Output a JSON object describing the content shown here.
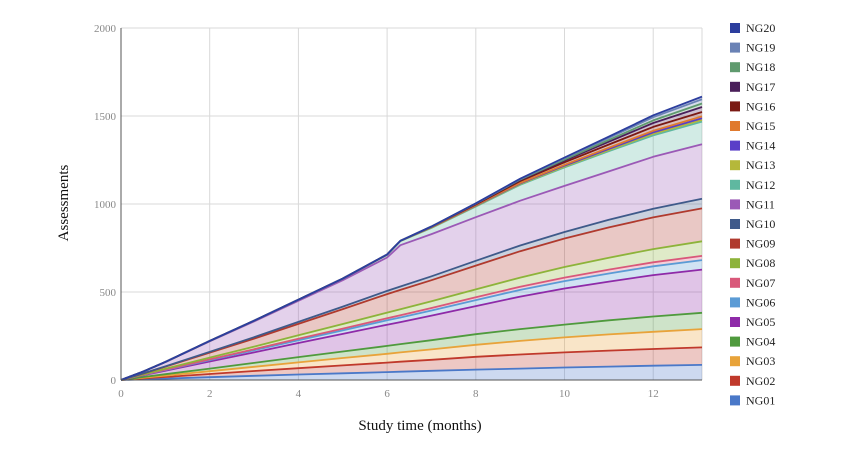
{
  "chart_data": {
    "type": "area",
    "stacked": true,
    "title": "",
    "xlabel": "Study time (months)",
    "ylabel": "Assessments",
    "xlim": [
      0,
      13.1
    ],
    "ylim": [
      0,
      2000
    ],
    "xticks": [
      0,
      2,
      4,
      6,
      8,
      10,
      12
    ],
    "yticks": [
      0,
      500,
      1000,
      1500,
      2000
    ],
    "grid": true,
    "legend_position": "right",
    "x": [
      0,
      0.5,
      1,
      2,
      3,
      4,
      5,
      6,
      6.3,
      7,
      8,
      9,
      10,
      11,
      12,
      13.1
    ],
    "series": [
      {
        "name": "NG01",
        "color": "#4a78c8",
        "values": [
          0,
          4,
          8,
          16,
          24,
          31,
          38,
          45,
          47,
          52,
          59,
          65,
          71,
          76,
          81,
          86
        ]
      },
      {
        "name": "NG02",
        "color": "#c0392b",
        "values": [
          0,
          5,
          9,
          18,
          27,
          36,
          45,
          54,
          57,
          63,
          73,
          80,
          86,
          91,
          95,
          99
        ]
      },
      {
        "name": "NG03",
        "color": "#e8a33a",
        "values": [
          0,
          4,
          8,
          16,
          24,
          33,
          42,
          50,
          53,
          59,
          68,
          77,
          85,
          92,
          98,
          104
        ]
      },
      {
        "name": "NG04",
        "color": "#4f9a3d",
        "values": [
          0,
          4,
          8,
          15,
          22,
          30,
          37,
          45,
          47,
          52,
          60,
          67,
          73,
          80,
          87,
          93
        ]
      },
      {
        "name": "NG05",
        "color": "#8e2aa8",
        "values": [
          0,
          10,
          20,
          40,
          60,
          80,
          100,
          120,
          125,
          140,
          160,
          185,
          205,
          220,
          235,
          245
        ]
      },
      {
        "name": "NG06",
        "color": "#5b9bd5",
        "values": [
          0,
          2,
          4,
          8,
          12,
          16,
          20,
          25,
          26,
          29,
          34,
          38,
          42,
          46,
          50,
          54
        ]
      },
      {
        "name": "NG07",
        "color": "#d9587a",
        "values": [
          0,
          1,
          2,
          4,
          6,
          8,
          10,
          12,
          13,
          14,
          16,
          18,
          20,
          22,
          23,
          24
        ]
      },
      {
        "name": "NG08",
        "color": "#8db33a",
        "values": [
          0,
          2,
          5,
          10,
          15,
          20,
          26,
          32,
          34,
          38,
          45,
          52,
          60,
          68,
          75,
          83
        ]
      },
      {
        "name": "NG09",
        "color": "#b03a2e",
        "values": [
          0,
          5,
          12,
          28,
          45,
          65,
          85,
          105,
          110,
          120,
          135,
          150,
          162,
          172,
          180,
          187
        ]
      },
      {
        "name": "NG10",
        "color": "#3f5a8a",
        "values": [
          0,
          1,
          2,
          5,
          8,
          11,
          14,
          18,
          19,
          22,
          27,
          32,
          37,
          43,
          49,
          55
        ]
      },
      {
        "name": "NG11",
        "color": "#9b59b6",
        "values": [
          0,
          10,
          24,
          60,
          90,
          120,
          150,
          190,
          235,
          240,
          248,
          255,
          262,
          275,
          295,
          310
        ]
      },
      {
        "name": "NG12",
        "color": "#5fb8a0",
        "values": [
          0,
          0,
          1,
          2,
          4,
          6,
          9,
          15,
          23,
          35,
          60,
          90,
          105,
          115,
          122,
          128
        ]
      },
      {
        "name": "NG13",
        "color": "#b5b83a",
        "values": [
          0,
          0,
          0,
          0,
          0,
          0,
          0,
          1,
          1,
          2,
          3,
          4,
          5,
          7,
          9,
          10
        ]
      },
      {
        "name": "NG14",
        "color": "#5a3fc8",
        "values": [
          0,
          0,
          0,
          0,
          0,
          0,
          0,
          1,
          1,
          2,
          3,
          4,
          5,
          6,
          8,
          9
        ]
      },
      {
        "name": "NG15",
        "color": "#e07a2e",
        "values": [
          0,
          0,
          0,
          0,
          0,
          0,
          0,
          0,
          0,
          1,
          2,
          3,
          5,
          7,
          9,
          11
        ]
      },
      {
        "name": "NG16",
        "color": "#7a1a14",
        "values": [
          0,
          0,
          0,
          0,
          0,
          0,
          0,
          0,
          0,
          2,
          5,
          10,
          14,
          18,
          22,
          25
        ]
      },
      {
        "name": "NG17",
        "color": "#4a1f5a",
        "values": [
          0,
          0,
          0,
          0,
          0,
          0,
          0,
          0,
          0,
          1,
          3,
          6,
          10,
          16,
          22,
          28
        ]
      },
      {
        "name": "NG18",
        "color": "#5f9a6e",
        "values": [
          0,
          0,
          0,
          0,
          0,
          0,
          0,
          0,
          0,
          0,
          1,
          3,
          6,
          10,
          15,
          20
        ]
      },
      {
        "name": "NG19",
        "color": "#6a82b5",
        "values": [
          0,
          0,
          0,
          0,
          0,
          0,
          0,
          0,
          0,
          0,
          1,
          3,
          7,
          12,
          18,
          24
        ]
      },
      {
        "name": "NG20",
        "color": "#2c3e9e",
        "values": [
          0,
          0,
          0,
          0,
          0,
          0,
          0,
          0,
          0,
          0,
          1,
          2,
          4,
          7,
          11,
          15
        ]
      }
    ]
  }
}
